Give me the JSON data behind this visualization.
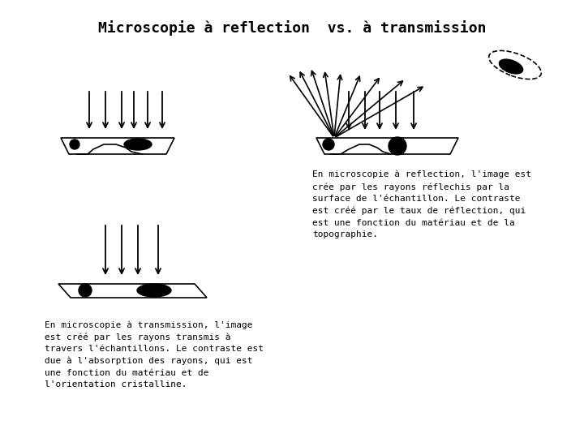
{
  "title": "Microscopie à reflection  vs. à transmission",
  "title_fontsize": 13,
  "background_color": "#ffffff",
  "text_color": "#000000",
  "left_caption": "En microscopie à transmission, l'image\nest créé par les rayons transmis à\ntravers l'échantillons. Le contraste est\ndue à l'absorption des rayons, qui est\nune fonction du matériau et de\nl'orientation cristalline.",
  "right_caption": "En microscopie à reflection, l'image est\ncrée par les rayons réflechis par la\nsurface de l'échantillon. Le contraste\nest créé par le taux de réflection, qui\nest une fonction du matériau et de la\ntopographie.",
  "caption_fontsize": 8.0
}
